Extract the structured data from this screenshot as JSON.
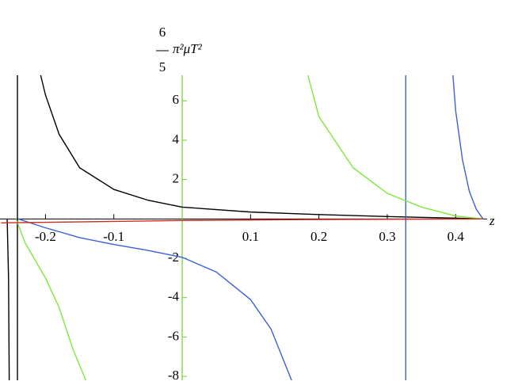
{
  "chart_data": {
    "type": "line",
    "y_label_numerator": "6",
    "y_label_denominator": "5",
    "y_label": "π²μT²",
    "x_label": "z",
    "xlim": [
      -0.2665,
      0.446
    ],
    "ylim": [
      -8.2,
      7.3
    ],
    "xticks": [
      -0.2,
      -0.1,
      0.1,
      0.2,
      0.3,
      0.4
    ],
    "yticks": [
      -8,
      -6,
      -4,
      -2,
      2,
      4,
      6
    ],
    "x_axis_color": "#000000",
    "y_axis_color": "#6fcf2f",
    "series": [
      {
        "color": "#000000",
        "x": [
          -0.207,
          -0.2,
          -0.18,
          -0.15,
          -0.1,
          -0.05,
          0,
          0.1,
          0.2,
          0.3,
          0.4,
          0.44
        ],
        "values": [
          7.3,
          6.3,
          4.3,
          2.6,
          1.5,
          0.95,
          0.6,
          0.35,
          0.22,
          0.12,
          0.04,
          0
        ]
      },
      {
        "color": "#000000",
        "x": [
          -0.256,
          -0.254,
          -0.253
        ],
        "values": [
          0,
          -3,
          -8.2
        ]
      },
      {
        "color": "#000000",
        "x": [
          -0.241,
          -0.241
        ],
        "values": [
          7.3,
          -8.2
        ]
      },
      {
        "color": "#3a5fd8",
        "x": [
          -0.24,
          -0.2,
          -0.15,
          -0.1,
          -0.05,
          0,
          0.05,
          0.1,
          0.13,
          0.16
        ],
        "values": [
          0,
          -0.45,
          -0.95,
          -1.3,
          -1.6,
          -1.95,
          -2.7,
          -4.1,
          -5.6,
          -8.2
        ]
      },
      {
        "color": "#3a5fd8",
        "x": [
          0.396,
          0.4,
          0.41,
          0.42,
          0.43,
          0.44
        ],
        "values": [
          7.3,
          5.5,
          3.0,
          1.4,
          0.5,
          0
        ]
      },
      {
        "color": "#3a5fd8",
        "x": [
          0.327,
          0.327
        ],
        "values": [
          7.3,
          -8.2
        ]
      },
      {
        "color": "#7ee83a",
        "x": [
          0.184,
          0.2,
          0.25,
          0.3,
          0.35,
          0.4,
          0.44
        ],
        "values": [
          7.3,
          5.2,
          2.6,
          1.3,
          0.6,
          0.15,
          0
        ]
      },
      {
        "color": "#7ee83a",
        "x": [
          -0.243,
          -0.23,
          -0.2,
          -0.18,
          -0.16,
          -0.141
        ],
        "values": [
          0,
          -1.2,
          -3,
          -4.5,
          -6.6,
          -8.2
        ]
      },
      {
        "color": "#cc2a1e",
        "x": [
          -0.265,
          0,
          0.2,
          0.44
        ],
        "values": [
          -0.2,
          -0.08,
          -0.03,
          0
        ]
      }
    ]
  }
}
